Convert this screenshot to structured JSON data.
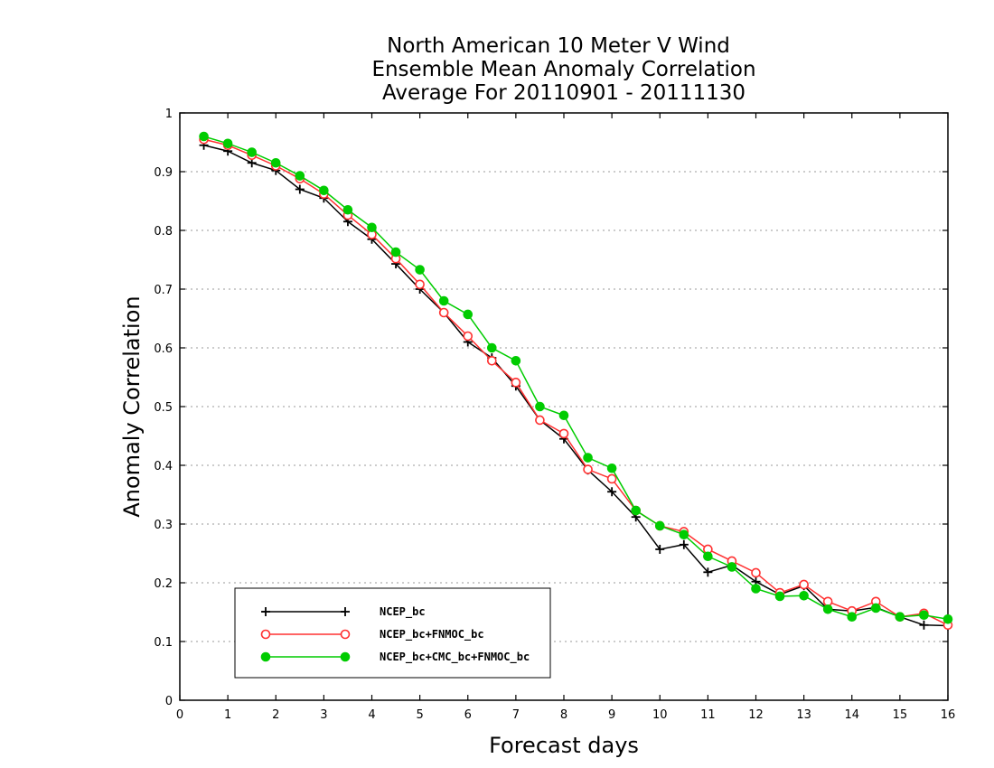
{
  "chart_data": {
    "type": "line",
    "title_lines": [
      "North American 10 Meter V Wind",
      "Ensemble Mean Anomaly Correlation",
      "Average For 20110901 - 20111130"
    ],
    "xlabel": "Forecast days",
    "ylabel": "Anomaly Correlation",
    "xlim": [
      0,
      16
    ],
    "ylim": [
      0,
      1
    ],
    "xticks": [
      0,
      1,
      2,
      3,
      4,
      5,
      6,
      7,
      8,
      9,
      10,
      11,
      12,
      13,
      14,
      15,
      16
    ],
    "yticks": [
      0,
      0.1,
      0.2,
      0.3,
      0.4,
      0.5,
      0.6,
      0.7,
      0.8,
      0.9,
      1
    ],
    "grid": "horizontal dotted",
    "legend_position": "bottom-left",
    "x": [
      0.5,
      1,
      1.5,
      2,
      2.5,
      3,
      3.5,
      4,
      4.5,
      5,
      5.5,
      6,
      6.5,
      7,
      7.5,
      8,
      8.5,
      9,
      9.5,
      10,
      10.5,
      11,
      11.5,
      12,
      12.5,
      13,
      13.5,
      14,
      14.5,
      15,
      15.5,
      16
    ],
    "series": [
      {
        "name": "NCEP_bc",
        "color": "#000000",
        "marker": "plus",
        "values": [
          0.945,
          0.935,
          0.915,
          0.902,
          0.87,
          0.855,
          0.815,
          0.785,
          0.743,
          0.7,
          0.66,
          0.61,
          0.583,
          0.535,
          0.477,
          0.445,
          0.392,
          0.355,
          0.312,
          0.257,
          0.265,
          0.218,
          0.23,
          0.202,
          0.18,
          0.195,
          0.155,
          0.152,
          0.158,
          0.142,
          0.128,
          0.127
        ]
      },
      {
        "name": "NCEP_bc+FNMOC_bc",
        "color": "#ff3030",
        "marker": "open-circle",
        "values": [
          0.955,
          0.945,
          0.928,
          0.91,
          0.888,
          0.862,
          0.826,
          0.793,
          0.752,
          0.708,
          0.66,
          0.62,
          0.578,
          0.541,
          0.477,
          0.454,
          0.393,
          0.377,
          0.323,
          0.297,
          0.287,
          0.257,
          0.237,
          0.217,
          0.183,
          0.197,
          0.168,
          0.152,
          0.168,
          0.142,
          0.148,
          0.128
        ]
      },
      {
        "name": "NCEP_bc+CMC_bc+FNMOC_bc",
        "color": "#00cc00",
        "marker": "filled-circle",
        "values": [
          0.96,
          0.948,
          0.933,
          0.915,
          0.893,
          0.868,
          0.835,
          0.805,
          0.763,
          0.733,
          0.68,
          0.657,
          0.6,
          0.578,
          0.5,
          0.485,
          0.413,
          0.395,
          0.323,
          0.297,
          0.282,
          0.245,
          0.227,
          0.19,
          0.177,
          0.178,
          0.155,
          0.142,
          0.157,
          0.142,
          0.145,
          0.138
        ]
      }
    ]
  }
}
